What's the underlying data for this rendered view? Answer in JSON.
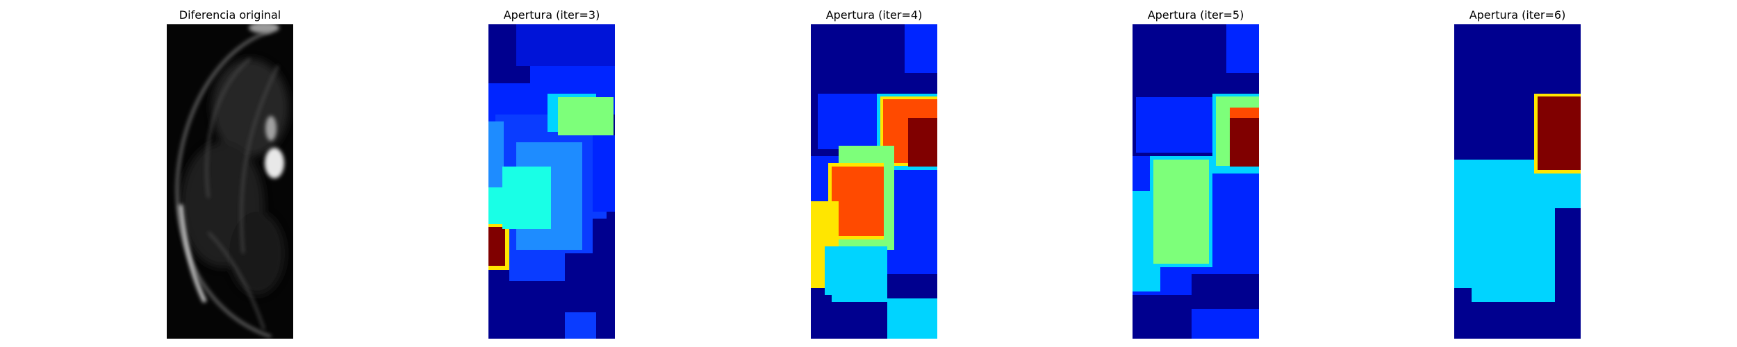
{
  "panels": [
    {
      "title": "Diferencia original",
      "kind": "grayscale-image"
    },
    {
      "title": "Apertura (iter=3)",
      "kind": "jet-colormap-image"
    },
    {
      "title": "Apertura (iter=4)",
      "kind": "jet-colormap-image"
    },
    {
      "title": "Apertura (iter=5)",
      "kind": "jet-colormap-image"
    },
    {
      "title": "Apertura (iter=6)",
      "kind": "jet-colormap-image"
    }
  ],
  "colors": {
    "background": "#ffffff",
    "jet_dark_blue": "#00008f",
    "jet_blue": "#0025ff",
    "jet_mid_blue": "#0a3cff",
    "jet_light_blue": "#1e8cff",
    "jet_cyan": "#00d4ff",
    "jet_aqua": "#19ffe6",
    "jet_green": "#7dff7a",
    "jet_yellow": "#ffe600",
    "jet_orange": "#ff4a00",
    "jet_dark_red": "#800000"
  }
}
